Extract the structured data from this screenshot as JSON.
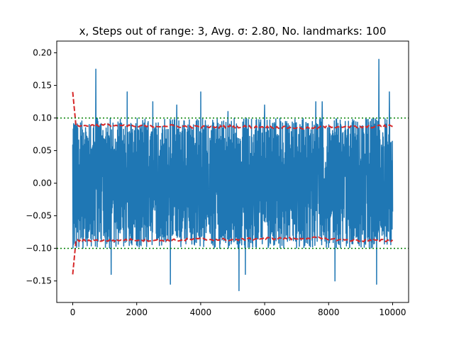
{
  "chart_data": {
    "type": "line",
    "title": "x, Steps out of range: 3, Avg. σ: 2.80, No. landmarks: 100",
    "xlabel": "",
    "ylabel": "",
    "xlim": [
      -500,
      10500
    ],
    "ylim": [
      -0.183,
      0.218
    ],
    "x_ticks": [
      0,
      2000,
      4000,
      6000,
      8000,
      10000
    ],
    "x_tick_labels": [
      "0",
      "2000",
      "4000",
      "6000",
      "8000",
      "10000"
    ],
    "y_ticks": [
      -0.15,
      -0.1,
      -0.05,
      0.0,
      0.05,
      0.1,
      0.15,
      0.2
    ],
    "y_tick_labels": [
      "−0.15",
      "−0.10",
      "−0.05",
      "0.00",
      "0.05",
      "0.10",
      "0.15",
      "0.20"
    ],
    "grid": false,
    "legend": "none",
    "series": [
      {
        "style": "solid",
        "color": "#1f77b4",
        "points": 10000,
        "x_range": [
          0,
          10000
        ],
        "typical_band": [
          -0.09,
          0.09
        ],
        "spikes": [
          {
            "x": 720,
            "y": 0.175
          },
          {
            "x": 1200,
            "y": -0.14
          },
          {
            "x": 1700,
            "y": 0.14
          },
          {
            "x": 2500,
            "y": 0.125
          },
          {
            "x": 3050,
            "y": -0.155
          },
          {
            "x": 3250,
            "y": 0.12
          },
          {
            "x": 4000,
            "y": 0.14
          },
          {
            "x": 4850,
            "y": 0.11
          },
          {
            "x": 5200,
            "y": -0.165
          },
          {
            "x": 5400,
            "y": -0.14
          },
          {
            "x": 6000,
            "y": 0.12
          },
          {
            "x": 7600,
            "y": 0.125
          },
          {
            "x": 7800,
            "y": 0.125
          },
          {
            "x": 8200,
            "y": -0.15
          },
          {
            "x": 9500,
            "y": -0.155
          },
          {
            "x": 9570,
            "y": 0.19
          },
          {
            "x": 9900,
            "y": 0.14
          }
        ]
      },
      {
        "style": "dashed",
        "color": "#d62728",
        "description": "upper envelope",
        "x": [
          0,
          100,
          1000,
          2000,
          3000,
          4000,
          5000,
          6000,
          7000,
          7500,
          8000,
          9000,
          10000
        ],
        "values": [
          0.14,
          0.088,
          0.089,
          0.087,
          0.088,
          0.086,
          0.087,
          0.086,
          0.085,
          0.084,
          0.087,
          0.086,
          0.088
        ]
      },
      {
        "style": "dashed",
        "color": "#d62728",
        "description": "lower envelope",
        "x": [
          0,
          100,
          1000,
          2000,
          3000,
          4000,
          5000,
          6000,
          7000,
          7500,
          8000,
          9000,
          10000
        ],
        "values": [
          -0.14,
          -0.088,
          -0.088,
          -0.087,
          -0.088,
          -0.086,
          -0.087,
          -0.085,
          -0.085,
          -0.084,
          -0.086,
          -0.088,
          -0.088
        ]
      },
      {
        "style": "dotted",
        "color": "#008000",
        "description": "upper bound",
        "y": 0.1
      },
      {
        "style": "dotted",
        "color": "#008000",
        "description": "lower bound",
        "y": -0.1
      }
    ]
  }
}
